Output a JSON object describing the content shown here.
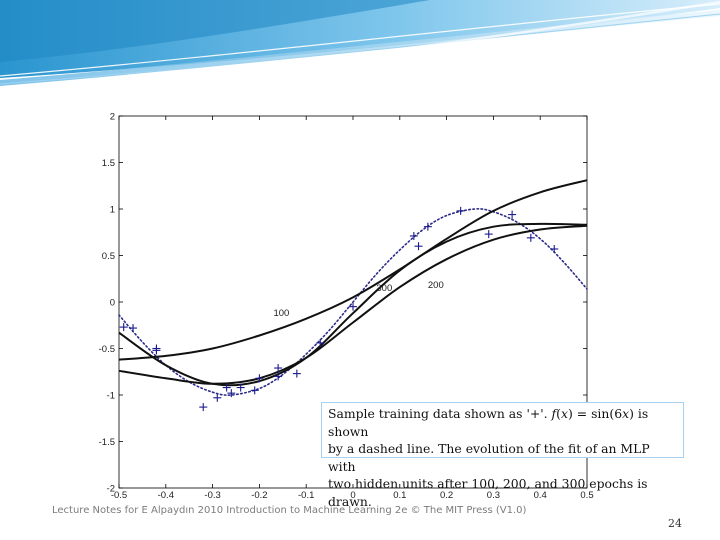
{
  "caption": {
    "line1_prefix": "Sample training data shown as '+'. ",
    "line1_f": "f",
    "line1_mid1": "(",
    "line1_x": "x",
    "line1_mid2": ") = sin(6",
    "line1_x2": "x",
    "line1_suffix": ") is shown",
    "line2": "by a dashed line. The evolution of the fit of an MLP with",
    "line3": "two hidden units after 100, 200, and 300 epochs is drawn."
  },
  "footer": {
    "note": "Lecture Notes for E Alpaydın 2010 Introduction to Machine Learning 2e © The MIT Press (V1.0)",
    "page_number": "24"
  },
  "chart_data": {
    "type": "line",
    "title": "",
    "xlabel": "",
    "ylabel": "",
    "xlim": [
      -0.5,
      0.5
    ],
    "ylim": [
      -2,
      2
    ],
    "xticks": [
      -0.5,
      -0.4,
      -0.3,
      -0.2,
      -0.1,
      0,
      0.1,
      0.2,
      0.3,
      0.4,
      0.5
    ],
    "xtick_labels": [
      "-0.5",
      "-0.4",
      "-0.3",
      "-0.2",
      "-0.1",
      "0",
      "0.1",
      "0.2",
      "0.3",
      "0.4",
      "0.5"
    ],
    "yticks": [
      -2,
      -1.5,
      -1,
      -0.5,
      0,
      0.5,
      1,
      1.5,
      2
    ],
    "ytick_labels": [
      "-2",
      "-1.5",
      "-1",
      "-0.5",
      "0",
      "0.5",
      "1",
      "1.5",
      "2"
    ],
    "series": [
      {
        "name": "f(x) = sin(6x)",
        "style": "dotted",
        "x": [
          -0.5,
          -0.45,
          -0.4,
          -0.35,
          -0.3,
          -0.26,
          -0.2,
          -0.15,
          -0.1,
          -0.05,
          0,
          0.05,
          0.1,
          0.15,
          0.2,
          0.26,
          0.3,
          0.35,
          0.4,
          0.45,
          0.5
        ],
        "y": [
          -0.14,
          -0.43,
          -0.68,
          -0.86,
          -0.97,
          -1.0,
          -0.93,
          -0.78,
          -0.56,
          -0.3,
          0,
          0.3,
          0.56,
          0.78,
          0.93,
          1.0,
          0.97,
          0.86,
          0.68,
          0.43,
          0.14
        ]
      },
      {
        "name": "100",
        "style": "solid",
        "x": [
          -0.5,
          -0.4,
          -0.3,
          -0.2,
          -0.1,
          0,
          0.1,
          0.2,
          0.3,
          0.4,
          0.5
        ],
        "y": [
          -0.62,
          -0.58,
          -0.5,
          -0.36,
          -0.18,
          0.05,
          0.35,
          0.68,
          0.98,
          1.18,
          1.31
        ]
      },
      {
        "name": "200",
        "style": "solid",
        "x": [
          -0.5,
          -0.4,
          -0.3,
          -0.2,
          -0.1,
          0,
          0.1,
          0.2,
          0.3,
          0.4,
          0.5
        ],
        "y": [
          -0.74,
          -0.82,
          -0.88,
          -0.82,
          -0.6,
          -0.22,
          0.16,
          0.46,
          0.67,
          0.78,
          0.82
        ]
      },
      {
        "name": "300",
        "style": "solid",
        "x": [
          -0.5,
          -0.4,
          -0.3,
          -0.2,
          -0.1,
          0,
          0.1,
          0.2,
          0.3,
          0.4,
          0.5
        ],
        "y": [
          -0.33,
          -0.68,
          -0.88,
          -0.85,
          -0.6,
          -0.12,
          0.34,
          0.65,
          0.81,
          0.84,
          0.83
        ]
      },
      {
        "name": "training samples",
        "style": "markers",
        "marker": "+",
        "x": [
          -0.49,
          -0.47,
          -0.42,
          -0.42,
          -0.32,
          -0.29,
          -0.27,
          -0.26,
          -0.24,
          -0.21,
          -0.2,
          -0.16,
          -0.16,
          -0.12,
          -0.07,
          0,
          0.13,
          0.14,
          0.16,
          0.23,
          0.29,
          0.34,
          0.38,
          0.43
        ],
        "y": [
          -0.27,
          -0.28,
          -0.5,
          -0.52,
          -1.13,
          -1.03,
          -0.92,
          -0.98,
          -0.92,
          -0.95,
          -0.82,
          -0.71,
          -0.8,
          -0.77,
          -0.44,
          -0.05,
          0.71,
          0.6,
          0.81,
          0.98,
          0.73,
          0.94,
          0.69,
          0.57
        ]
      }
    ],
    "annotations": [
      {
        "text": "100",
        "x": -0.17,
        "y": -0.15
      },
      {
        "text": "200",
        "x": 0.16,
        "y": 0.15
      },
      {
        "text": "300",
        "x": 0.05,
        "y": 0.12
      }
    ]
  }
}
